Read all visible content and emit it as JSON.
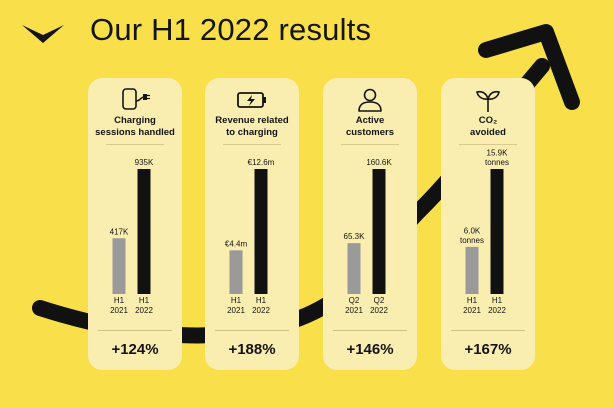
{
  "title": "Our H1 2022 results",
  "colors": {
    "background": "#F9DF4A",
    "card": "#FAEDB0",
    "bar_prior": "#9A9A9A",
    "bar_current": "#111111",
    "arrow": "#111111"
  },
  "icons": [
    "charger-icon",
    "battery-icon",
    "user-icon",
    "sprout-icon"
  ],
  "chart_data": [
    {
      "type": "bar",
      "title": "Charging\nsessions handled",
      "categories": [
        "H1\n2021",
        "H1\n2022"
      ],
      "values": [
        417,
        935
      ],
      "value_labels": [
        "417K",
        "935K"
      ],
      "unit": "K",
      "change": "+124%"
    },
    {
      "type": "bar",
      "title": "Revenue related\nto charging",
      "categories": [
        "H1\n2021",
        "H1\n2022"
      ],
      "values": [
        4.4,
        12.6
      ],
      "value_labels": [
        "€4.4m",
        "€12.6m"
      ],
      "unit": "€m",
      "change": "+188%"
    },
    {
      "type": "bar",
      "title": "Active\ncustomers",
      "categories": [
        "Q2\n2021",
        "Q2\n2022"
      ],
      "values": [
        65.3,
        160.6
      ],
      "value_labels": [
        "65.3K",
        "160.6K"
      ],
      "unit": "K",
      "change": "+146%"
    },
    {
      "type": "bar",
      "title": "CO₂\navoided",
      "categories": [
        "H1\n2021",
        "H1\n2022"
      ],
      "values": [
        6.0,
        15.9
      ],
      "value_labels": [
        "6.0K\ntonnes",
        "15.9K\ntonnes"
      ],
      "unit": "K tonnes",
      "change": "+167%"
    }
  ]
}
